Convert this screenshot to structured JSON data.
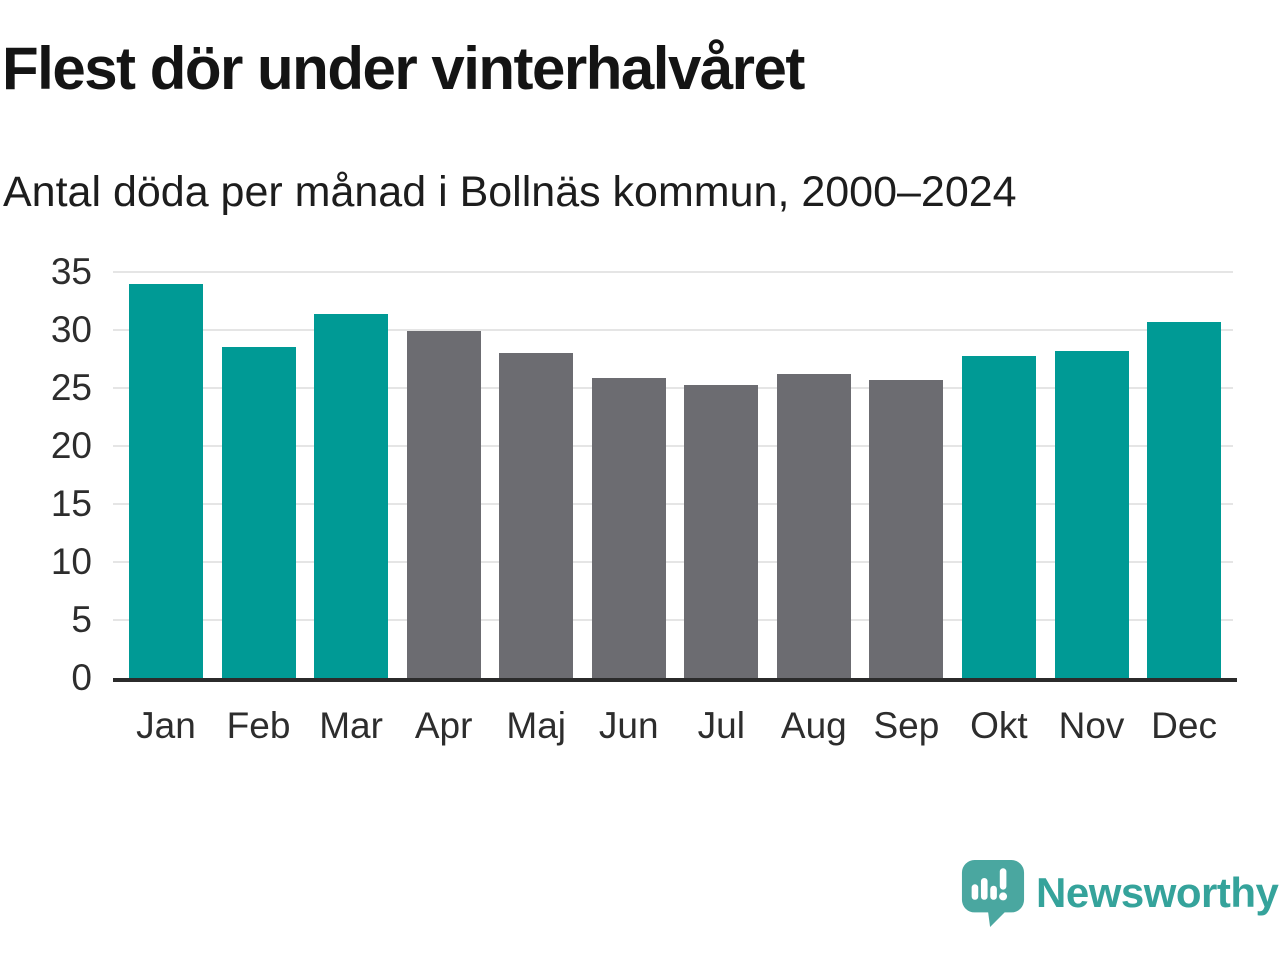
{
  "header": {
    "title": "Flest dör under vinterhalvåret",
    "subtitle": "Antal döda per månad i Bollnäs kommun, 2000–2024"
  },
  "chart_data": {
    "type": "bar",
    "title": "Flest dör under vinterhalvåret",
    "subtitle": "Antal döda per månad i Bollnäs kommun, 2000–2024",
    "categories": [
      "Jan",
      "Feb",
      "Mar",
      "Apr",
      "Maj",
      "Jun",
      "Jul",
      "Aug",
      "Sep",
      "Okt",
      "Nov",
      "Dec"
    ],
    "values": [
      34.0,
      28.5,
      31.4,
      29.9,
      28.0,
      25.9,
      25.3,
      26.2,
      25.7,
      27.8,
      28.2,
      30.7
    ],
    "bar_colors": [
      "#009a95",
      "#009a95",
      "#009a95",
      "#6c6c71",
      "#6c6c71",
      "#6c6c71",
      "#6c6c71",
      "#6c6c71",
      "#6c6c71",
      "#009a95",
      "#009a95",
      "#009a95"
    ],
    "colors": {
      "highlight": "#009a95",
      "neutral": "#6c6c71"
    },
    "highlighted_categories": [
      "Jan",
      "Feb",
      "Mar",
      "Okt",
      "Nov",
      "Dec"
    ],
    "xlabel": "",
    "ylabel": "",
    "ylim": [
      0,
      35
    ],
    "yticks": [
      0,
      5,
      10,
      15,
      20,
      25,
      30,
      35
    ],
    "grid": true,
    "legend": false
  },
  "footer": {
    "brand": "Newsworthy",
    "logo_icon": "speech-bubble-bar-chart-icon",
    "brand_color": "#35a39b",
    "icon_color": "#4aa7a0"
  }
}
